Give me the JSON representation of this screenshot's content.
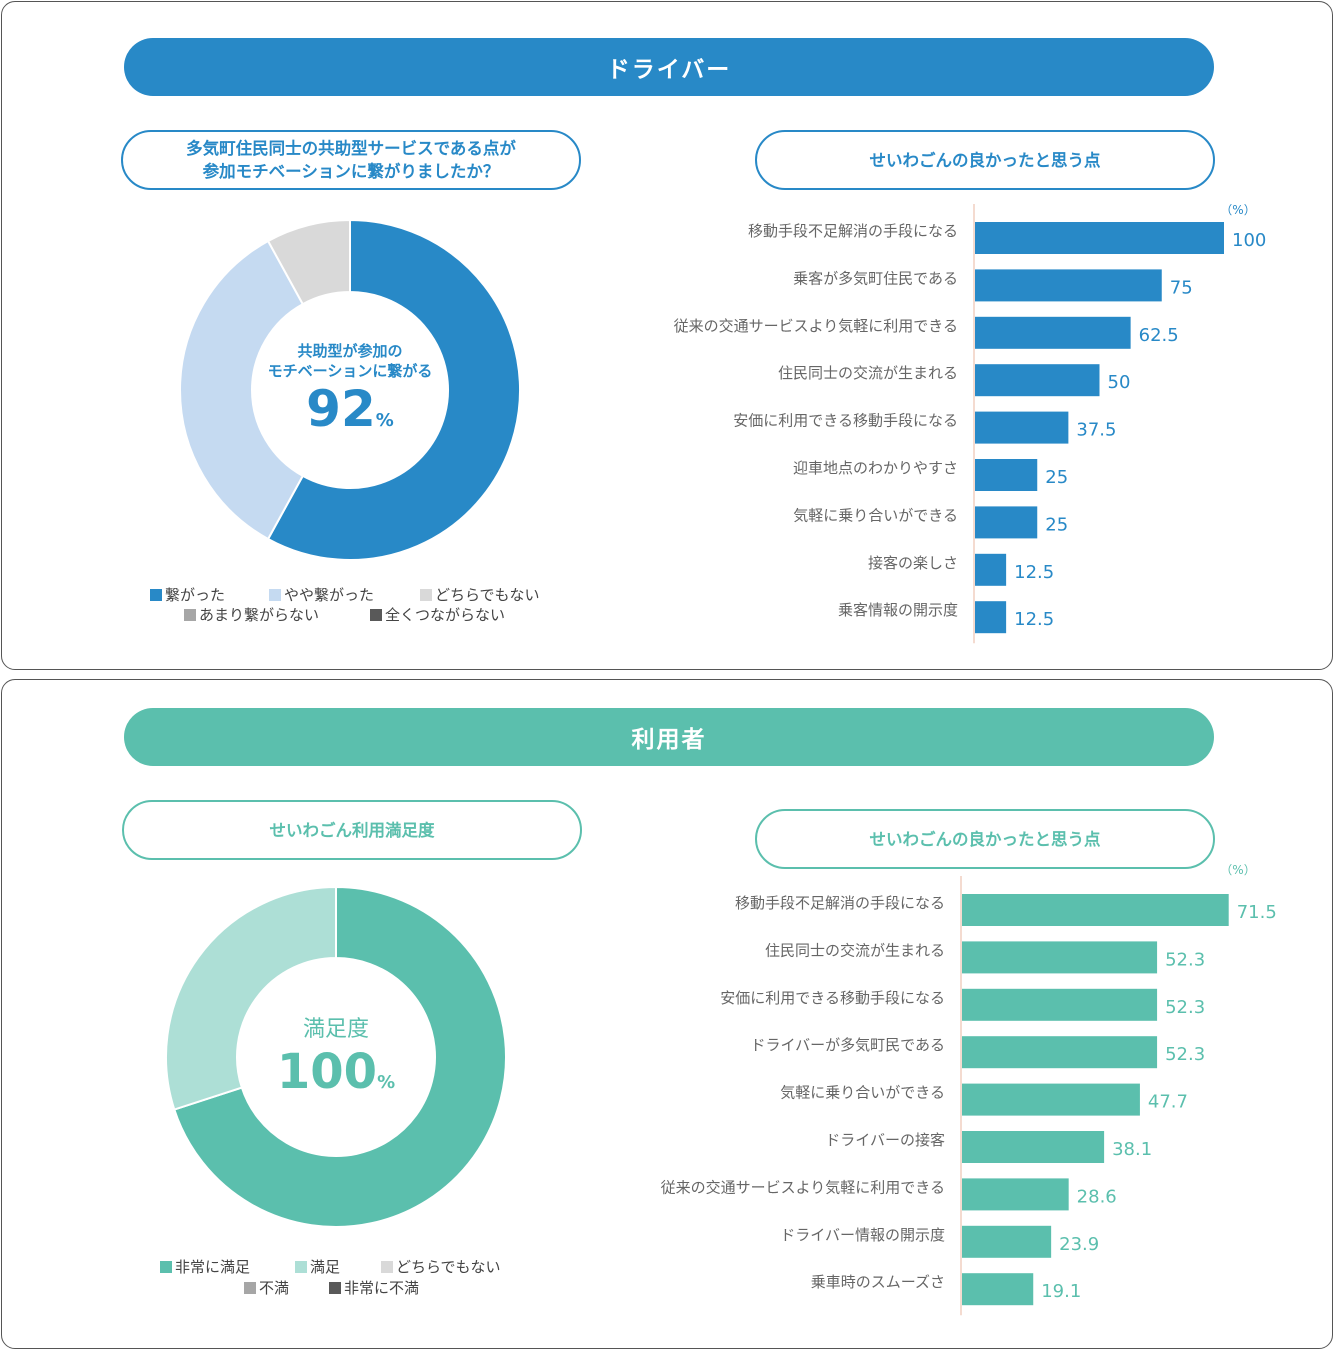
{
  "colors": {
    "driver": "#2889c7",
    "user": "#5bbfad",
    "driver_light": "#c5daf1",
    "user_light": "#addfd6",
    "grey1": "#d9d9d9",
    "grey2": "#a6a6a6",
    "grey3": "#595959"
  },
  "driver": {
    "banner": "ドライバー",
    "pie_title_line1": "多気町住民同士の共助型サービスである点が",
    "pie_title_line2": "参加モチベーションに繋がりましたか？",
    "center_line1": "共助型が参加の",
    "center_line2": "モチベーションに繋がる",
    "center_value": "92",
    "center_unit": "%",
    "legend": [
      "繋がった",
      "やや繋がった",
      "どちらでもない",
      "あまり繋がらない",
      "全くつながらない"
    ],
    "bar_title": "せいわごんの良かったと思う点",
    "unit_label": "（%）"
  },
  "user": {
    "banner": "利用者",
    "pie_title": "せいわごん利用満足度",
    "center_line1": "満足度",
    "center_value": "100",
    "center_unit": "%",
    "legend": [
      "非常に満足",
      "満足",
      "どちらでもない",
      "不満",
      "非常に不満"
    ],
    "bar_title": "せいわごんの良かったと思う点",
    "unit_label": "（%）"
  },
  "chart_data": [
    {
      "type": "pie",
      "categories": [
        "繋がった",
        "やや繋がった",
        "どちらでもない",
        "あまり繋がらない",
        "全くつながらない"
      ],
      "values": [
        58,
        34,
        8,
        0,
        0
      ]
    },
    {
      "type": "bar",
      "categories": [
        "移動手段不足解消の手段になる",
        "乗客が多気町住民である",
        "従来の交通サービスより気軽に利用できる",
        "住民同士の交流が生まれる",
        "安価に利用できる移動手段になる",
        "迎車地点のわかりやすさ",
        "気軽に乗り合いができる",
        "接客の楽しさ",
        "乗客情報の開示度"
      ],
      "values": [
        100,
        75,
        62.5,
        50,
        37.5,
        25,
        25,
        12.5,
        12.5
      ]
    },
    {
      "type": "pie",
      "categories": [
        "非常に満足",
        "満足",
        "どちらでもない",
        "不満",
        "非常に不満"
      ],
      "values": [
        70,
        30,
        0,
        0,
        0
      ]
    },
    {
      "type": "bar",
      "categories": [
        "移動手段不足解消の手段になる",
        "住民同士の交流が生まれる",
        "安価に利用できる移動手段になる",
        "ドライバーが多気町民である",
        "気軽に乗り合いができる",
        "ドライバーの接客",
        "従来の交通サービスより気軽に利用できる",
        "ドライバー情報の開示度",
        "乗車時のスムーズさ"
      ],
      "values": [
        71.5,
        52.3,
        52.3,
        52.3,
        47.7,
        38.1,
        28.6,
        23.9,
        19.1
      ]
    }
  ]
}
